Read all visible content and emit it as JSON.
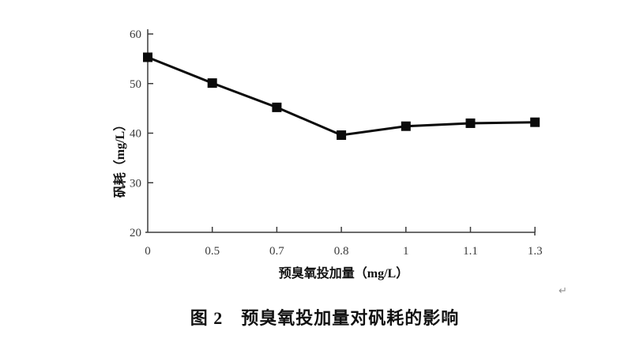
{
  "figure": {
    "caption": "图 2　预臭氧投加量对矾耗的影响"
  },
  "marks": {
    "after_figure": "↵",
    "after_caption": "↵"
  },
  "chart_data": {
    "type": "line",
    "title": "图 2 预臭氧投加量对矾耗的影响",
    "categories": [
      "0",
      "0.5",
      "0.7",
      "0.8",
      "1",
      "1.1",
      "1.3"
    ],
    "values": [
      55.3,
      50.1,
      45.2,
      39.6,
      41.4,
      42.0,
      42.2
    ],
    "series_name": "矾耗",
    "xlabel": "预臭氧投加量（mg/L）",
    "ylabel": "矾耗（mg/L）",
    "y_ticks": [
      60,
      50,
      40,
      30,
      20
    ],
    "ylim": [
      20,
      60
    ],
    "x_spacing": "categorical-even",
    "marker": "filled-square",
    "line_color": "#000000",
    "axis_color": "#3c3c3c",
    "background": "#ffffff",
    "grid": false,
    "legend": "none"
  }
}
